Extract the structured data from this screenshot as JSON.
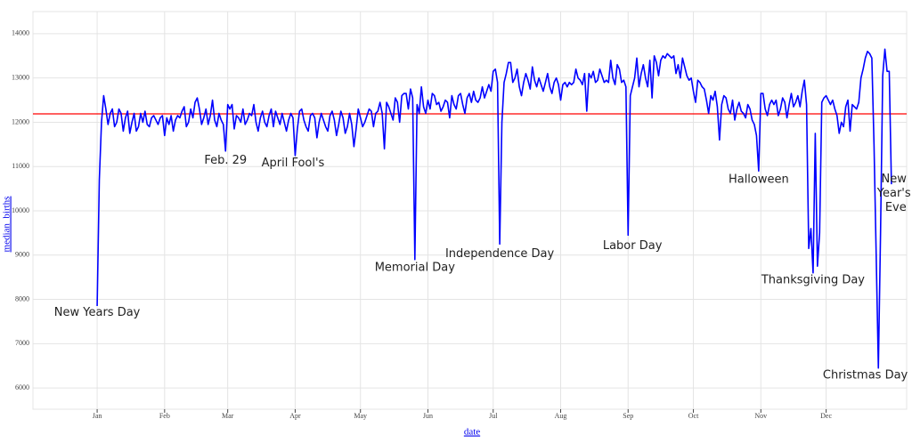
{
  "chart_data": {
    "type": "line",
    "x_label": "date",
    "y_label": "median_births",
    "xlim": [
      -28.5,
      373
    ],
    "ylim": [
      5520,
      14500
    ],
    "xticks": [
      {
        "value": 1,
        "label": "Jan"
      },
      {
        "value": 32,
        "label": "Feb"
      },
      {
        "value": 61,
        "label": "Mar"
      },
      {
        "value": 92,
        "label": "Apr"
      },
      {
        "value": 122,
        "label": "May"
      },
      {
        "value": 153,
        "label": "Jun"
      },
      {
        "value": 183,
        "label": "Jul"
      },
      {
        "value": 214,
        "label": "Aug"
      },
      {
        "value": 245,
        "label": "Sep"
      },
      {
        "value": 275,
        "label": "Oct"
      },
      {
        "value": 306,
        "label": "Nov"
      },
      {
        "value": 336,
        "label": "Dec"
      }
    ],
    "yticks": [
      6000,
      7000,
      8000,
      9000,
      10000,
      11000,
      12000,
      13000,
      14000
    ],
    "grid": true,
    "reference_line": {
      "value": 12190,
      "color": "#ff0000"
    },
    "x": [
      1,
      2,
      3,
      4,
      5,
      6,
      7,
      8,
      9,
      10,
      11,
      12,
      13,
      14,
      15,
      16,
      17,
      18,
      19,
      20,
      21,
      22,
      23,
      24,
      25,
      26,
      27,
      28,
      29,
      30,
      31,
      32,
      33,
      34,
      35,
      36,
      37,
      38,
      39,
      40,
      41,
      42,
      43,
      44,
      45,
      46,
      47,
      48,
      49,
      50,
      51,
      52,
      53,
      54,
      55,
      56,
      57,
      58,
      59,
      60,
      61,
      62,
      63,
      64,
      65,
      66,
      67,
      68,
      69,
      70,
      71,
      72,
      73,
      74,
      75,
      76,
      77,
      78,
      79,
      80,
      81,
      82,
      83,
      84,
      85,
      86,
      87,
      88,
      89,
      90,
      91,
      92,
      93,
      94,
      95,
      96,
      97,
      98,
      99,
      100,
      101,
      102,
      103,
      104,
      105,
      106,
      107,
      108,
      109,
      110,
      111,
      112,
      113,
      114,
      115,
      116,
      117,
      118,
      119,
      120,
      121,
      122,
      123,
      124,
      125,
      126,
      127,
      128,
      129,
      130,
      131,
      132,
      133,
      134,
      135,
      136,
      137,
      138,
      139,
      140,
      141,
      142,
      143,
      144,
      145,
      146,
      147,
      148,
      149,
      150,
      151,
      152,
      153,
      154,
      155,
      156,
      157,
      158,
      159,
      160,
      161,
      162,
      163,
      164,
      165,
      166,
      167,
      168,
      169,
      170,
      171,
      172,
      173,
      174,
      175,
      176,
      177,
      178,
      179,
      180,
      181,
      182,
      183,
      184,
      185,
      186,
      187,
      188,
      189,
      190,
      191,
      192,
      193,
      194,
      195,
      196,
      197,
      198,
      199,
      200,
      201,
      202,
      203,
      204,
      205,
      206,
      207,
      208,
      209,
      210,
      211,
      212,
      213,
      214,
      215,
      216,
      217,
      218,
      219,
      220,
      221,
      222,
      223,
      224,
      225,
      226,
      227,
      228,
      229,
      230,
      231,
      232,
      233,
      234,
      235,
      236,
      237,
      238,
      239,
      240,
      241,
      242,
      243,
      244,
      245,
      246,
      247,
      248,
      249,
      250,
      251,
      252,
      253,
      254,
      255,
      256,
      257,
      258,
      259,
      260,
      261,
      262,
      263,
      264,
      265,
      266,
      267,
      268,
      269,
      270,
      271,
      272,
      273,
      274,
      275,
      276,
      277,
      278,
      279,
      280,
      281,
      282,
      283,
      284,
      285,
      286,
      287,
      288,
      289,
      290,
      291,
      292,
      293,
      294,
      295,
      296,
      297,
      298,
      299,
      300,
      301,
      302,
      303,
      304,
      305,
      306,
      307,
      308,
      309,
      310,
      311,
      312,
      313,
      314,
      315,
      316,
      317,
      318,
      319,
      320,
      321,
      322,
      323,
      324,
      325,
      326,
      327,
      328,
      329,
      330,
      331,
      332,
      333,
      334,
      335,
      336,
      337,
      338,
      339,
      340,
      341,
      342,
      343,
      344,
      345,
      346,
      347,
      348,
      349,
      350,
      351,
      352,
      353,
      354,
      355,
      356,
      357,
      358,
      359,
      360,
      361,
      362,
      363,
      364,
      365,
      366
    ],
    "series": [
      {
        "color": "#0000ff",
        "values": [
          7850,
          10700,
          12000,
          12600,
          12300,
          11950,
          12200,
          12300,
          11900,
          12000,
          12300,
          12200,
          11800,
          12100,
          12250,
          11750,
          12000,
          12200,
          11800,
          11900,
          12200,
          12000,
          12250,
          11950,
          11900,
          12100,
          12150,
          12050,
          11950,
          12100,
          12150,
          11700,
          12100,
          11950,
          12150,
          11800,
          12050,
          12150,
          12100,
          12250,
          12350,
          11900,
          12000,
          12300,
          12100,
          12450,
          12550,
          12300,
          11950,
          12100,
          12300,
          11950,
          12150,
          12500,
          12050,
          11900,
          12200,
          12050,
          11950,
          11350,
          12400,
          12300,
          12400,
          11850,
          12150,
          12100,
          12000,
          12300,
          11950,
          12050,
          12200,
          12150,
          12400,
          12000,
          11800,
          12100,
          12250,
          12000,
          11900,
          12150,
          12300,
          11900,
          12250,
          12100,
          11950,
          12200,
          12000,
          11800,
          12050,
          12200,
          12100,
          11250,
          11850,
          12250,
          12300,
          12050,
          11900,
          11800,
          12150,
          12200,
          12100,
          11650,
          12000,
          12200,
          12050,
          11900,
          11800,
          12150,
          12250,
          12050,
          11700,
          11950,
          12250,
          12100,
          11750,
          11900,
          12200,
          11950,
          11450,
          11850,
          12300,
          12100,
          11900,
          12000,
          12150,
          12300,
          12250,
          11900,
          12200,
          12250,
          12450,
          12200,
          11400,
          12450,
          12350,
          12200,
          12050,
          12550,
          12450,
          12000,
          12600,
          12650,
          12650,
          12300,
          12750,
          12550,
          8900,
          12400,
          12200,
          12800,
          12350,
          12200,
          12500,
          12300,
          12650,
          12600,
          12400,
          12450,
          12250,
          12350,
          12500,
          12450,
          12100,
          12600,
          12400,
          12300,
          12600,
          12650,
          12400,
          12200,
          12550,
          12650,
          12450,
          12700,
          12500,
          12450,
          12550,
          12800,
          12550,
          12700,
          12850,
          12700,
          13150,
          13200,
          12900,
          9250,
          12000,
          12900,
          13100,
          13350,
          13350,
          12900,
          13000,
          13200,
          12800,
          12600,
          12900,
          13100,
          12950,
          12750,
          13250,
          12950,
          12800,
          13000,
          12850,
          12700,
          12900,
          13100,
          12800,
          12650,
          12900,
          13000,
          12850,
          12500,
          12850,
          12900,
          12800,
          12900,
          12850,
          12900,
          13200,
          13000,
          12950,
          12850,
          13100,
          12250,
          13100,
          13000,
          13150,
          12900,
          12950,
          13200,
          13050,
          12900,
          12950,
          12900,
          13400,
          13000,
          12850,
          13300,
          13200,
          12900,
          12950,
          12800,
          9450,
          12600,
          12800,
          13000,
          13450,
          12800,
          13100,
          13300,
          13000,
          12800,
          13400,
          12550,
          13500,
          13350,
          13050,
          13400,
          13500,
          13450,
          13550,
          13500,
          13450,
          13500,
          13100,
          13300,
          13000,
          13450,
          13250,
          13050,
          12950,
          13000,
          12700,
          12450,
          12950,
          12900,
          12800,
          12750,
          12500,
          12200,
          12600,
          12500,
          12700,
          12350,
          11600,
          12400,
          12600,
          12550,
          12300,
          12200,
          12500,
          12050,
          12300,
          12450,
          12250,
          12200,
          12100,
          12400,
          12300,
          12050,
          11950,
          11700,
          10900,
          12650,
          12650,
          12300,
          12150,
          12400,
          12500,
          12400,
          12500,
          12150,
          12300,
          12550,
          12450,
          12100,
          12400,
          12650,
          12350,
          12450,
          12600,
          12350,
          12700,
          12950,
          12400,
          9150,
          9600,
          8600,
          11750,
          8750,
          9500,
          12450,
          12550,
          12600,
          12500,
          12400,
          12500,
          12300,
          12150,
          11750,
          12000,
          11900,
          12350,
          12500,
          11800,
          12400,
          12350,
          12300,
          12450,
          13000,
          13200,
          13450,
          13600,
          13550,
          13450,
          11500,
          9000,
          6450,
          9500,
          13050,
          13650,
          13150,
          13150,
          10600
        ]
      }
    ],
    "annotations": [
      {
        "text": "New Years Day",
        "x": 1,
        "y": 7700
      },
      {
        "text": "Feb. 29",
        "x": 60,
        "y": 11130
      },
      {
        "text": "April Fool's",
        "x": 91,
        "y": 11070
      },
      {
        "text": "Memorial Day",
        "x": 147,
        "y": 8710
      },
      {
        "text": "Independence Day",
        "x": 186,
        "y": 9030
      },
      {
        "text": "Labor Day",
        "x": 247,
        "y": 9210
      },
      {
        "text": "Halloween",
        "x": 305,
        "y": 10700
      },
      {
        "text": "Thanksgiving Day",
        "x": 330,
        "y": 8430
      },
      {
        "text": "Christmas Day",
        "x": 354,
        "y": 6280
      },
      {
        "text": "New Year's Eve",
        "x": 368,
        "y": 10400,
        "wrap": true
      }
    ]
  }
}
